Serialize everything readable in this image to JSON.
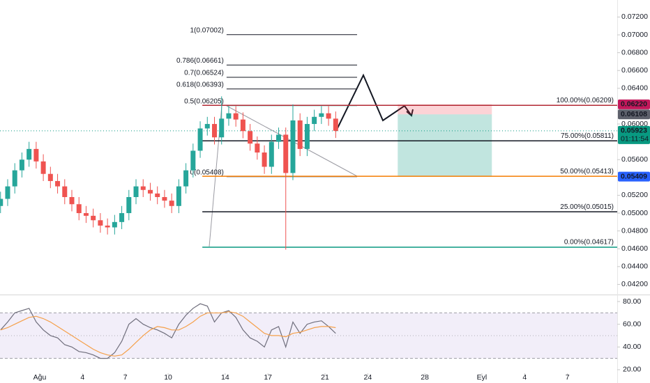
{
  "chart_data": [
    {
      "type": "candlestick",
      "x": [
        -2.75,
        -2.25,
        -1.75,
        -1.25,
        -0.75,
        -0.25,
        0.25,
        0.75,
        1.25,
        1.75,
        2.25,
        2.75,
        3.25,
        3.75,
        4.25,
        4.75,
        5.25,
        5.75,
        6.25,
        6.75,
        7.25,
        7.75,
        8.25,
        8.75,
        9.25,
        9.75,
        10.25,
        10.75,
        11.25,
        11.75,
        12.25,
        12.75,
        13.25,
        13.75,
        14.25,
        14.75,
        15.25,
        15.75,
        16.25,
        16.75,
        17.25,
        17.75,
        18.25,
        18.75,
        19.25,
        19.75,
        20.25,
        20.75
      ],
      "open": [
        0.0508,
        0.0516,
        0.053,
        0.0548,
        0.056,
        0.0572,
        0.0558,
        0.0544,
        0.0536,
        0.053,
        0.0518,
        0.051,
        0.05,
        0.0497,
        0.0492,
        0.0486,
        0.0484,
        0.049,
        0.05,
        0.0518,
        0.053,
        0.0526,
        0.0522,
        0.0518,
        0.0514,
        0.0508,
        0.053,
        0.0548,
        0.057,
        0.0595,
        0.06,
        0.0585,
        0.0606,
        0.0612,
        0.0605,
        0.0592,
        0.0578,
        0.0568,
        0.0552,
        0.058,
        0.0588,
        0.0545,
        0.0604,
        0.0572,
        0.06,
        0.0608,
        0.0612,
        0.0606
      ],
      "high": [
        0.0524,
        0.0538,
        0.0556,
        0.0568,
        0.058,
        0.058,
        0.0566,
        0.0552,
        0.0544,
        0.0538,
        0.0526,
        0.0518,
        0.0508,
        0.0505,
        0.05,
        0.0494,
        0.0498,
        0.0508,
        0.0526,
        0.0538,
        0.0538,
        0.0534,
        0.053,
        0.0526,
        0.0522,
        0.0538,
        0.0556,
        0.0578,
        0.0603,
        0.0608,
        0.0608,
        0.0631,
        0.062,
        0.062,
        0.0613,
        0.06,
        0.0586,
        0.0576,
        0.0588,
        0.0596,
        0.0596,
        0.0622,
        0.0612,
        0.0608,
        0.0616,
        0.062,
        0.062,
        0.0614
      ],
      "low": [
        0.05,
        0.0508,
        0.0522,
        0.054,
        0.0552,
        0.055,
        0.0536,
        0.0528,
        0.0522,
        0.051,
        0.0502,
        0.0492,
        0.0489,
        0.0484,
        0.0478,
        0.0476,
        0.0476,
        0.0482,
        0.0492,
        0.051,
        0.0518,
        0.0514,
        0.051,
        0.0506,
        0.05,
        0.05,
        0.0522,
        0.054,
        0.0562,
        0.0587,
        0.0577,
        0.0577,
        0.0598,
        0.0597,
        0.0584,
        0.057,
        0.056,
        0.0544,
        0.0544,
        0.0572,
        0.0459,
        0.0537,
        0.0564,
        0.0564,
        0.0592,
        0.06,
        0.0598,
        0.05843
      ],
      "close": [
        0.0516,
        0.053,
        0.0548,
        0.056,
        0.0572,
        0.0558,
        0.0544,
        0.0536,
        0.053,
        0.0518,
        0.051,
        0.05,
        0.0497,
        0.0492,
        0.0486,
        0.0484,
        0.049,
        0.05,
        0.0518,
        0.053,
        0.0526,
        0.0522,
        0.0518,
        0.0514,
        0.0508,
        0.053,
        0.0548,
        0.057,
        0.0595,
        0.06,
        0.0585,
        0.0606,
        0.0612,
        0.0605,
        0.0592,
        0.0578,
        0.0568,
        0.0552,
        0.058,
        0.0588,
        0.0545,
        0.0604,
        0.0572,
        0.06,
        0.0608,
        0.0612,
        0.0606,
        0.05923
      ],
      "up_color": "#26a69a",
      "down_color": "#ef5350",
      "xlim": [
        -2.787,
        40.49
      ],
      "xticks": [
        {
          "value": 0,
          "label": "Ağu"
        },
        {
          "value": 3,
          "label": "4"
        },
        {
          "value": 6,
          "label": "7"
        },
        {
          "value": 9,
          "label": "10"
        },
        {
          "value": 13,
          "label": "14"
        },
        {
          "value": 16,
          "label": "17"
        },
        {
          "value": 20,
          "label": "21"
        },
        {
          "value": 23,
          "label": "24"
        },
        {
          "value": 27,
          "label": "28"
        },
        {
          "value": 31,
          "label": "Eyl"
        },
        {
          "value": 34,
          "label": "4"
        },
        {
          "value": 37,
          "label": "7"
        }
      ],
      "ylim": [
        0.04094,
        0.07391
      ],
      "yticks": [
        {
          "value": 0.042,
          "label": "0.04200"
        },
        {
          "value": 0.044,
          "label": "0.04400"
        },
        {
          "value": 0.046,
          "label": "0.04600"
        },
        {
          "value": 0.048,
          "label": "0.04800"
        },
        {
          "value": 0.05,
          "label": "0.05000"
        },
        {
          "value": 0.052,
          "label": "0.05200"
        },
        {
          "value": 0.054,
          "label": "0.05400"
        },
        {
          "value": 0.056,
          "label": "0.05600"
        },
        {
          "value": 0.058,
          "label": "0.05800"
        },
        {
          "value": 0.06,
          "label": "0.06000"
        },
        {
          "value": 0.062,
          "label": "0.06200"
        },
        {
          "value": 0.064,
          "label": "0.06400"
        },
        {
          "value": 0.066,
          "label": "0.06600"
        },
        {
          "value": 0.068,
          "label": "0.06800"
        },
        {
          "value": 0.07,
          "label": "0.07000"
        },
        {
          "value": 0.072,
          "label": "0.07200"
        }
      ],
      "fib_retracement": {
        "x": [
          13.1,
          22.25
        ],
        "levels": [
          {
            "value": 0.07002,
            "label": "1(0.07002)",
            "color": "#131722"
          },
          {
            "value": 0.06661,
            "label": "0.786(0.06661)",
            "color": "#131722"
          },
          {
            "value": 0.06524,
            "label": "0.7(0.06524)",
            "color": "#131722"
          },
          {
            "value": 0.06393,
            "label": "0.618(0.06393)",
            "color": "#131722"
          },
          {
            "value": 0.06205,
            "label": "0.5(0.06205)",
            "color": "#22ab94"
          },
          {
            "value": 0.05408,
            "label": "0(0.05408)",
            "color": "#787b86"
          }
        ]
      },
      "fib_levels": {
        "x_start": 11.4,
        "levels": [
          {
            "value": 0.06209,
            "label": "100.00%(0.06209)",
            "color": "#b22833"
          },
          {
            "value": 0.05811,
            "label": "75.00%(0.05811)",
            "color": "#131722"
          },
          {
            "value": 0.05413,
            "label": "50.00%(0.05413)",
            "color": "#f57c00"
          },
          {
            "value": 0.05015,
            "label": "25.00%(0.05015)",
            "color": "#131722"
          },
          {
            "value": 0.04617,
            "label": "0.00%(0.04617)",
            "color": "#089981"
          }
        ]
      },
      "position": {
        "x": [
          25.1,
          31.7
        ],
        "stop": {
          "value": 0.0622,
          "label": "0.06220"
        },
        "entry": {
          "value": 0.06108,
          "label": "0.06108"
        },
        "target": {
          "value": 0.05409,
          "label": "0.05409"
        }
      },
      "current_price": {
        "value": 0.05923,
        "label": "0.05923",
        "countdown": "01:11:54"
      }
    },
    {
      "type": "line",
      "series": [
        {
          "color": "#6f6e7c",
          "values": [
            55,
            62,
            70,
            72,
            74,
            62,
            55,
            50,
            48,
            42,
            40,
            36,
            35,
            33,
            30,
            30,
            35,
            45,
            60,
            65,
            60,
            57,
            55,
            52,
            48,
            60,
            68,
            74,
            78,
            76,
            62,
            70,
            72,
            66,
            55,
            48,
            45,
            40,
            55,
            58,
            40,
            62,
            52,
            60,
            62,
            63,
            58,
            52
          ]
        },
        {
          "color": "#f5a04a",
          "values": [
            55,
            57,
            60,
            63,
            66,
            67,
            65,
            62,
            58,
            54,
            50,
            46,
            42,
            38,
            35,
            33,
            32,
            33,
            38,
            44,
            50,
            55,
            58,
            57,
            55,
            55,
            58,
            62,
            67,
            70,
            70,
            70,
            71,
            70,
            67,
            62,
            57,
            52,
            50,
            50,
            49,
            52,
            53,
            55,
            57,
            58,
            58,
            57
          ]
        }
      ],
      "ylim": [
        17.5,
        85.5
      ],
      "yticks": [
        {
          "value": 80,
          "label": "80.00"
        },
        {
          "value": 60,
          "label": "60.00"
        },
        {
          "value": 40,
          "label": "40.00"
        },
        {
          "value": 20,
          "label": "20.00"
        }
      ],
      "band": [
        30,
        70
      ],
      "midline": 50
    }
  ]
}
